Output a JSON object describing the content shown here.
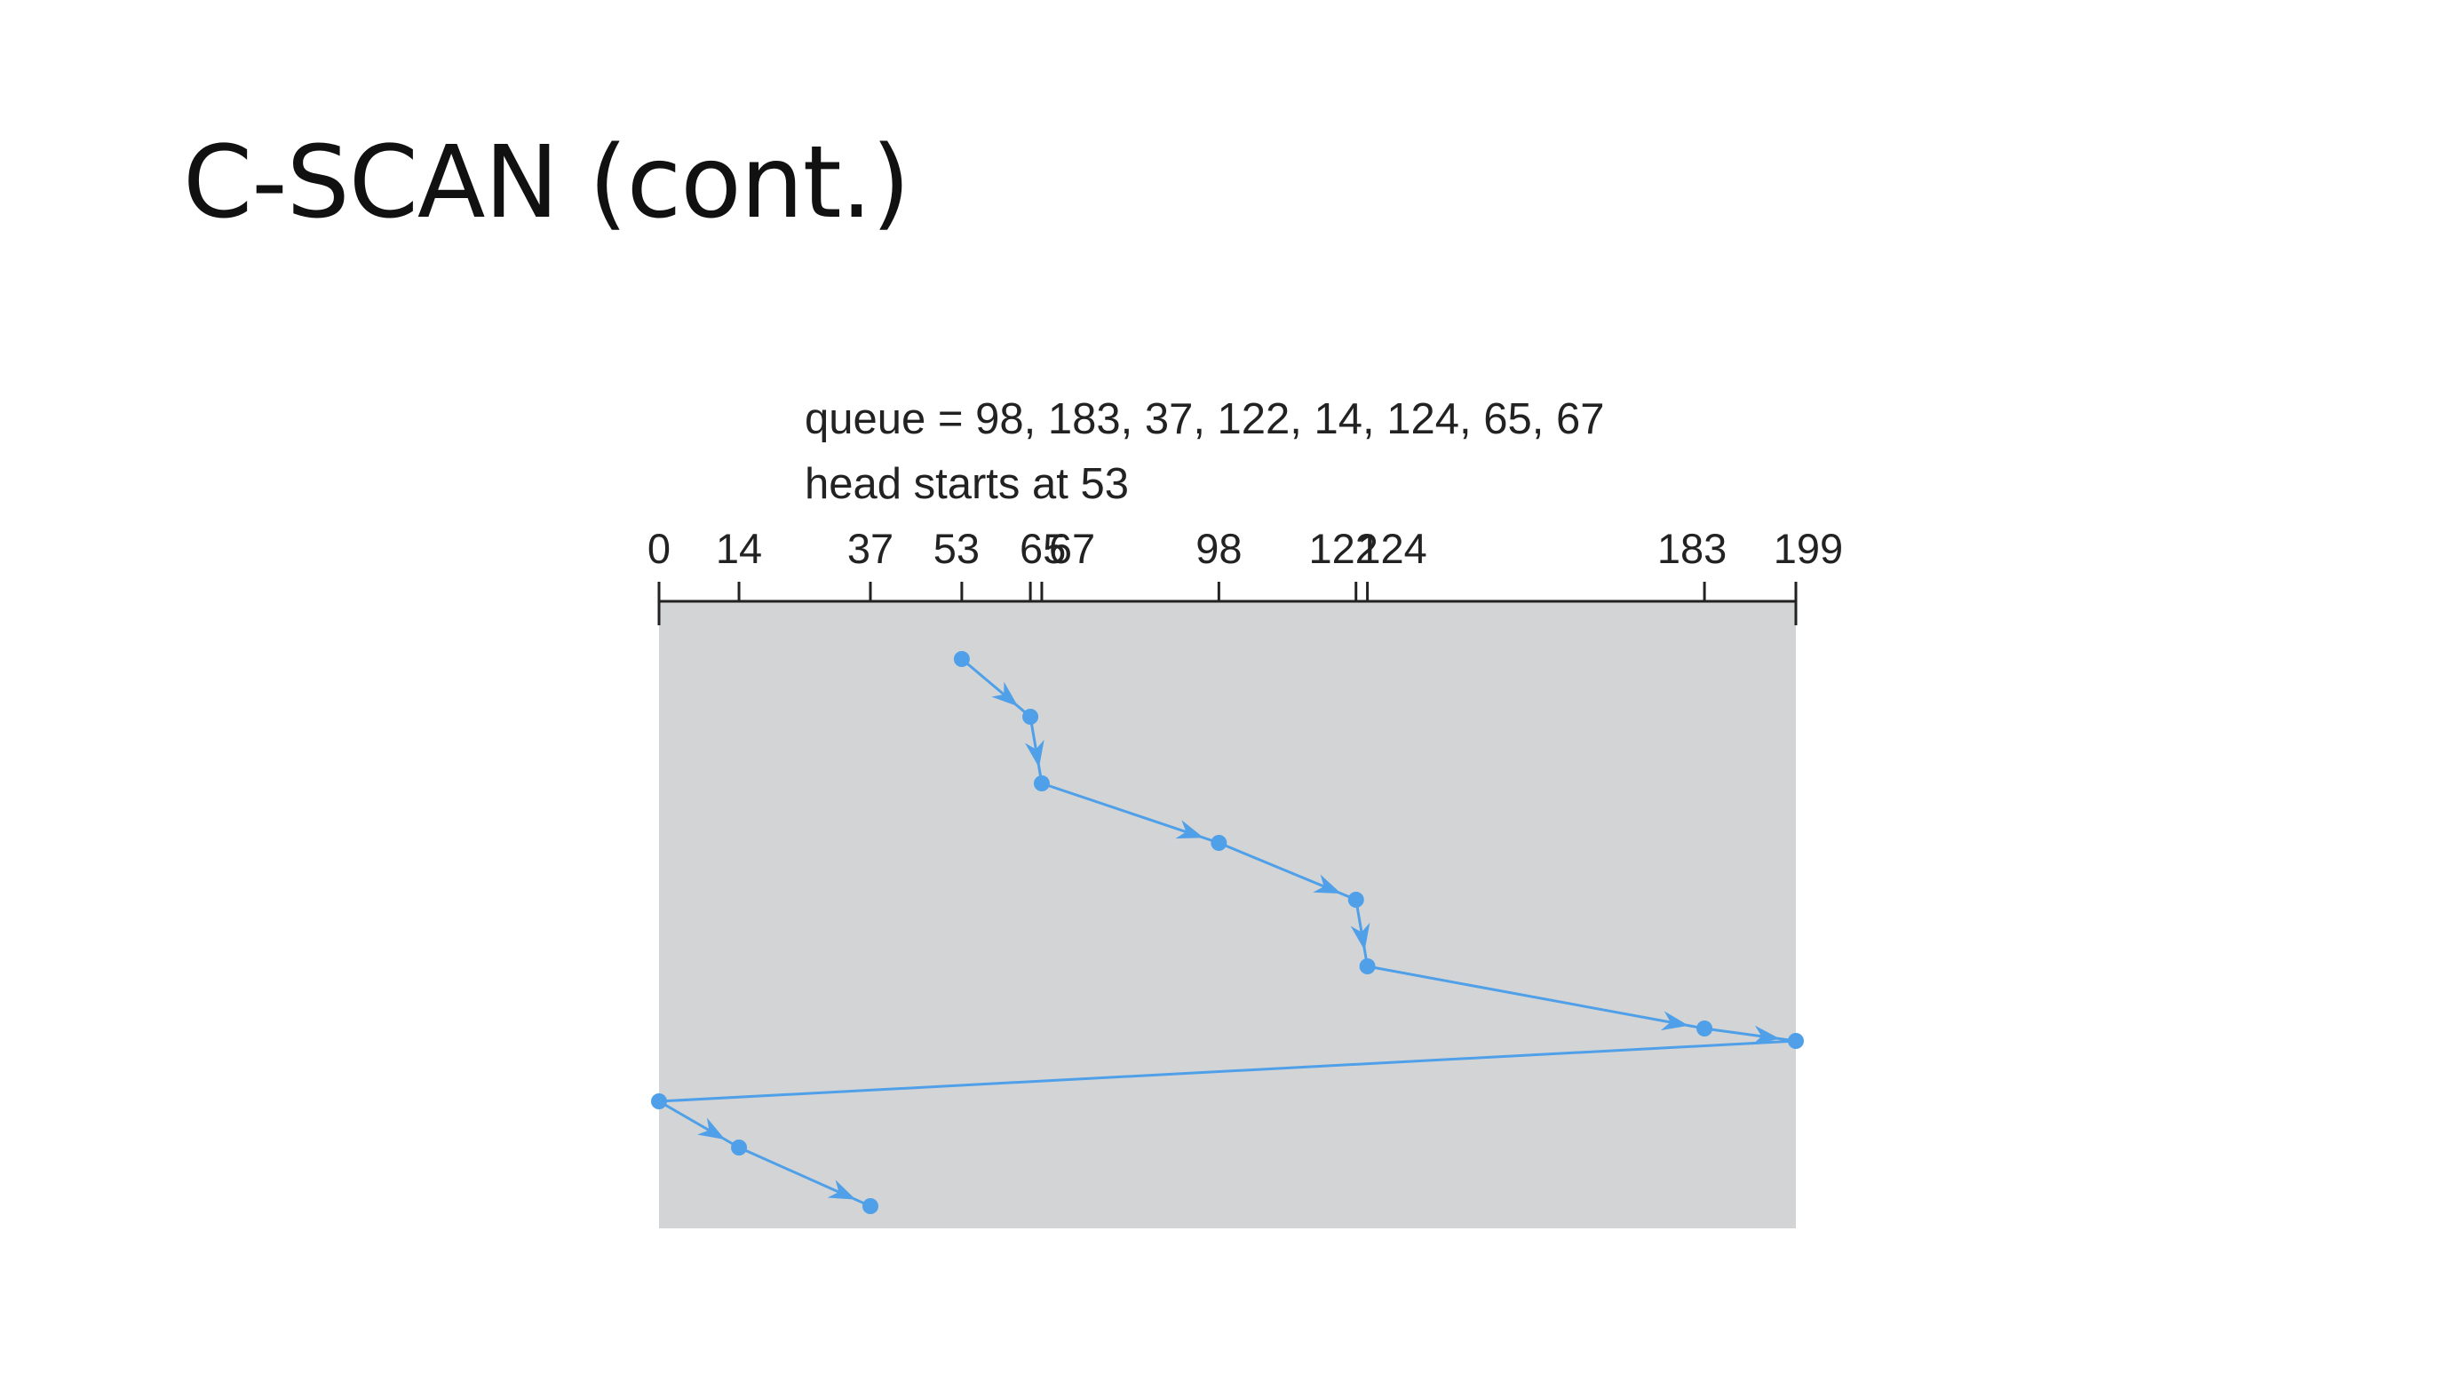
{
  "slide": {
    "title": "C-SCAN (cont.)"
  },
  "diagram": {
    "queue_text": "queue = 98, 183, 37, 122, 14, 124, 65, 67",
    "head_text": "head starts at 53",
    "track_min": 0,
    "track_max": 199,
    "ticks": [
      0,
      14,
      37,
      53,
      65,
      67,
      98,
      122,
      124,
      183,
      199
    ],
    "tick_labels": [
      "0",
      "14",
      "37",
      "53",
      "65",
      "67",
      "98",
      "122",
      "124",
      "183",
      "199"
    ],
    "head_path": [
      53,
      65,
      67,
      98,
      122,
      124,
      183,
      199,
      0,
      14,
      37
    ],
    "arrows_on_segments": [
      true,
      true,
      true,
      true,
      true,
      true,
      true,
      false,
      true,
      true
    ],
    "colors": {
      "path": "#4fa0e8",
      "background": "#d2d4d6",
      "axis": "#222222"
    }
  }
}
